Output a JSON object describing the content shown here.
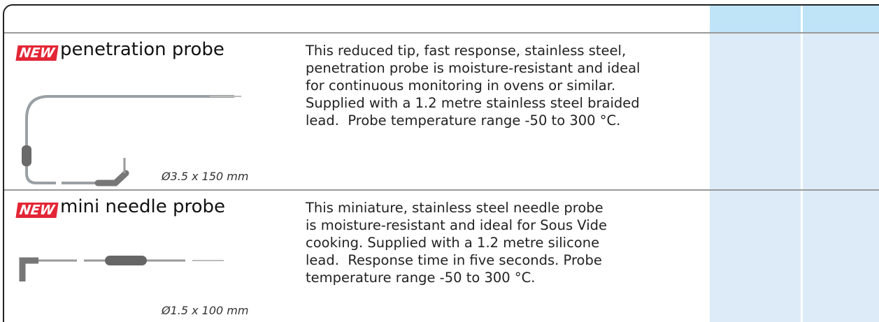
{
  "products": [
    {
      "badge": "NEW",
      "name": "penetration probe",
      "dimension": "Ø3.5 x 150 mm",
      "description": [
        "This reduced tip, fast response, stainless steel,",
        "penetration probe is moisture-resistant and ideal",
        "for continuous monitoring in ovens or similar.",
        "Supplied with a 1.2 metre stainless steel braided",
        "lead.  Probe temperature range -50 to 300 °C."
      ]
    },
    {
      "badge": "NEW",
      "name": "mini needle probe",
      "dimension": "Ø1.5 x 100 mm",
      "description": [
        "This miniature, stainless steel needle probe",
        "is moisture-resistant and ideal for Sous Vide",
        "cooking. Supplied with a 1.2 metre silicone",
        "lead.  Response time in five seconds. Probe",
        "temperature range -50 to 300 °C."
      ]
    }
  ]
}
